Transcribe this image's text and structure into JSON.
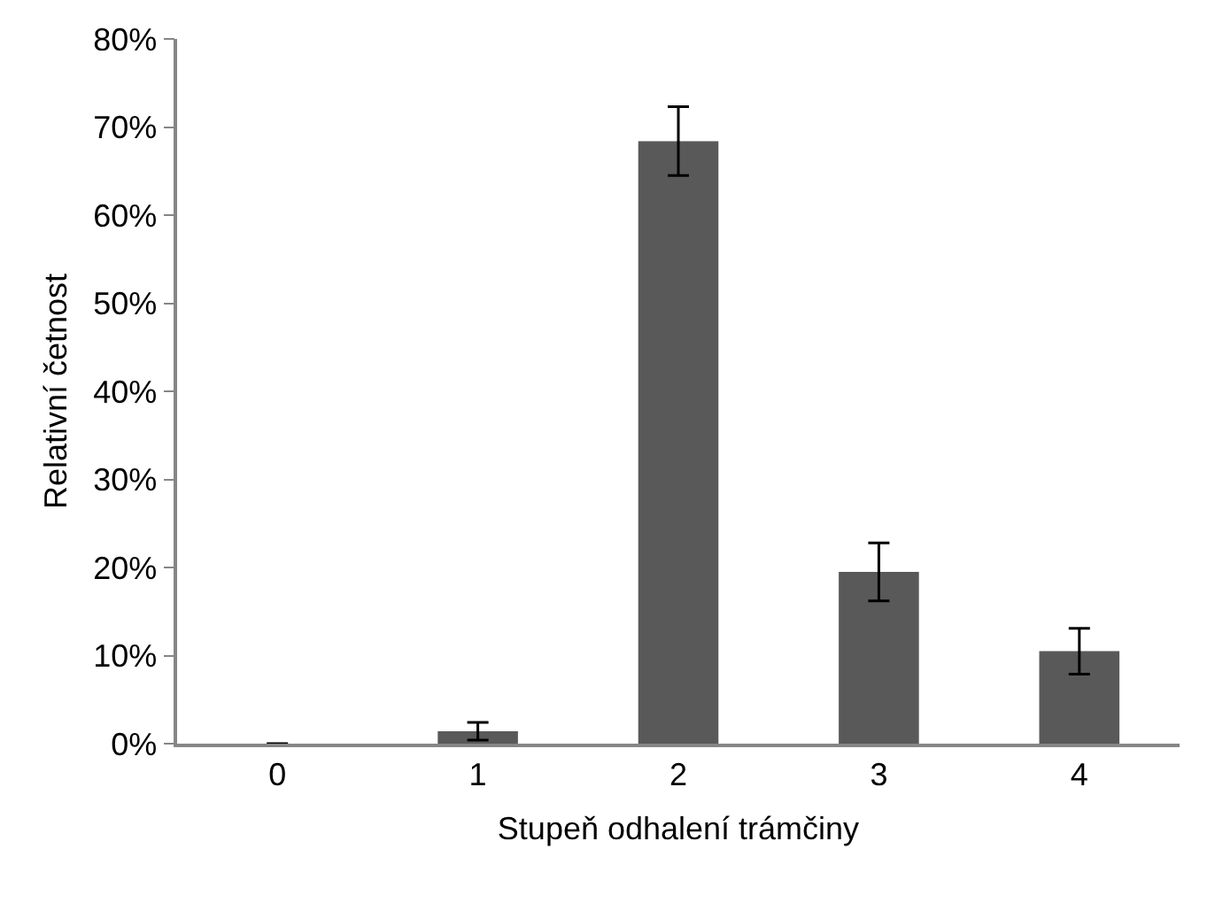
{
  "chart_data": {
    "type": "bar",
    "xlabel": "Stupeň odhalení trámčiny",
    "ylabel": "Relativní četnost",
    "categories": [
      "0",
      "1",
      "2",
      "3",
      "4"
    ],
    "values": [
      0,
      1.4,
      68.4,
      19.5,
      10.5
    ],
    "errors": [
      null,
      1.0,
      3.9,
      3.3,
      2.6
    ],
    "color": "#595959",
    "ylim": [
      0,
      80
    ],
    "yticks": [
      {
        "value": 0,
        "label": "0%"
      },
      {
        "value": 10,
        "label": "10%"
      },
      {
        "value": 20,
        "label": "20%"
      },
      {
        "value": 30,
        "label": "30%"
      },
      {
        "value": 40,
        "label": "40%"
      },
      {
        "value": 50,
        "label": "50%"
      },
      {
        "value": 60,
        "label": "60%"
      },
      {
        "value": 70,
        "label": "70%"
      },
      {
        "value": 80,
        "label": "80%"
      }
    ]
  }
}
